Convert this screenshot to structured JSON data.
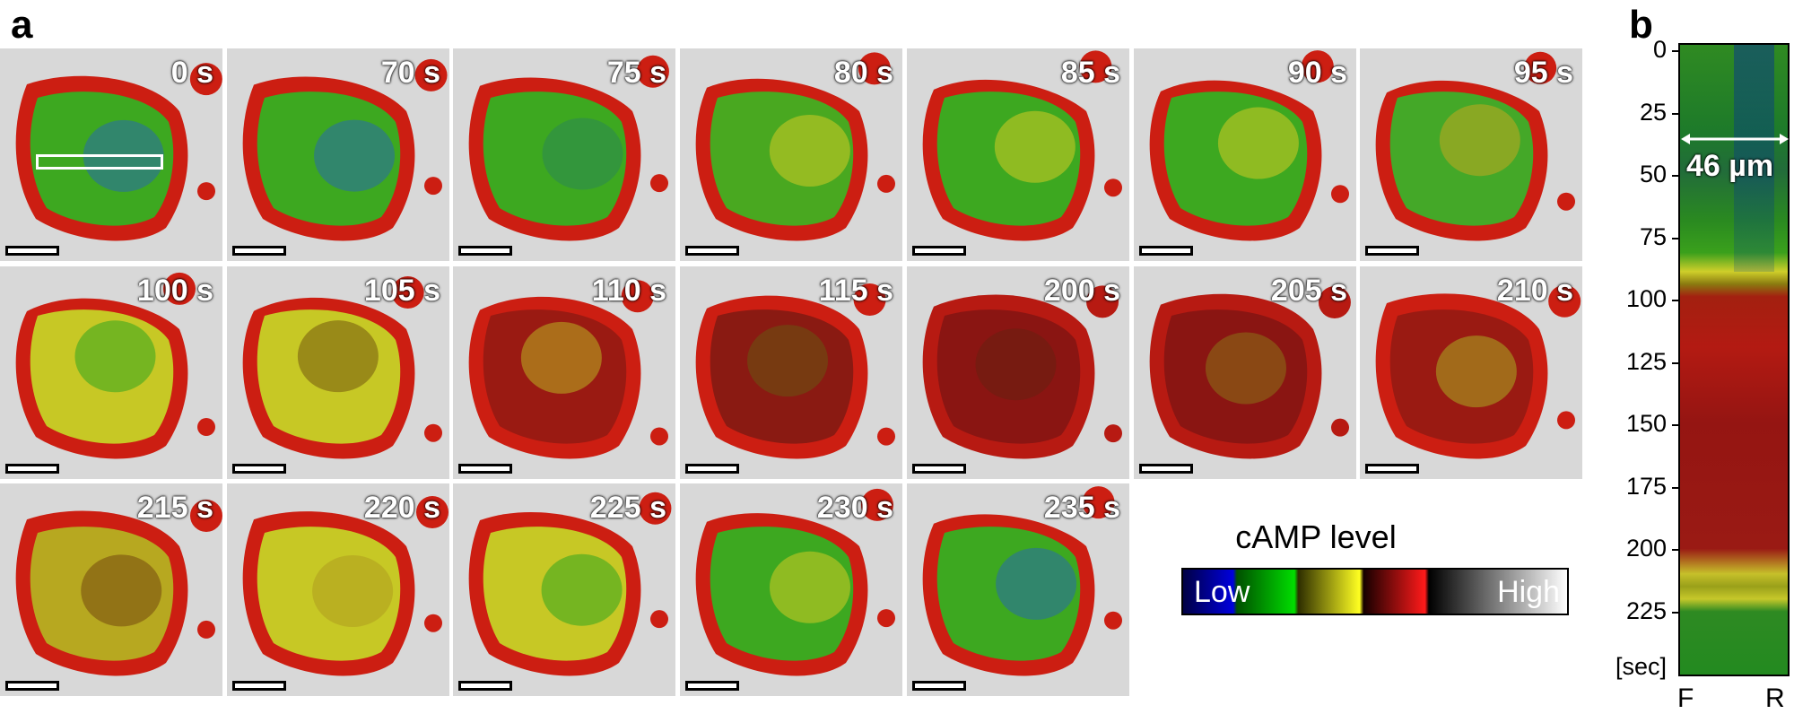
{
  "panel_a": {
    "letter": "a"
  },
  "panel_b": {
    "letter": "b"
  },
  "frames": [
    {
      "time": "0 s",
      "fill": "#3da820",
      "rim": "#cc1e12",
      "inner": "#2a6fa0"
    },
    {
      "time": "70 s",
      "fill": "#3da820",
      "rim": "#cc1e12",
      "inner": "#2a6fa0"
    },
    {
      "time": "75 s",
      "fill": "#3da820",
      "rim": "#cc1e12",
      "inner": "#2d8a50"
    },
    {
      "time": "80 s",
      "fill": "#49a820",
      "rim": "#cc1e12",
      "inner": "#c7c825"
    },
    {
      "time": "85 s",
      "fill": "#3da820",
      "rim": "#cc1e12",
      "inner": "#c7c825"
    },
    {
      "time": "90 s",
      "fill": "#3da820",
      "rim": "#cc1e12",
      "inner": "#c7c825"
    },
    {
      "time": "95 s",
      "fill": "#44a828",
      "rim": "#cc1e12",
      "inner": "#b7a820"
    },
    {
      "time": "100 s",
      "fill": "#c7c825",
      "rim": "#cc1e12",
      "inner": "#3da820"
    },
    {
      "time": "105 s",
      "fill": "#c7c825",
      "rim": "#cc1e12",
      "inner": "#7a6010"
    },
    {
      "time": "110 s",
      "fill": "#9a1a12",
      "rim": "#cc1e12",
      "inner": "#b8a520"
    },
    {
      "time": "115 s",
      "fill": "#8a1a12",
      "rim": "#cc1e12",
      "inner": "#6a5010"
    },
    {
      "time": "200 s",
      "fill": "#8a1512",
      "rim": "#b71a12",
      "inner": "#6a2010"
    },
    {
      "time": "205 s",
      "fill": "#8a1512",
      "rim": "#b71a12",
      "inner": "#8a6a15"
    },
    {
      "time": "210 s",
      "fill": "#9a1a12",
      "rim": "#cc1e12",
      "inner": "#a8a020"
    },
    {
      "time": "215 s",
      "fill": "#b7a820",
      "rim": "#cc1e12",
      "inner": "#7a5010"
    },
    {
      "time": "220 s",
      "fill": "#c7c825",
      "rim": "#cc1e12",
      "inner": "#b0a020"
    },
    {
      "time": "225 s",
      "fill": "#c7c825",
      "rim": "#cc1e12",
      "inner": "#3da820"
    },
    {
      "time": "230 s",
      "fill": "#3da820",
      "rim": "#cc1e12",
      "inner": "#c7c825"
    },
    {
      "time": "235 s",
      "fill": "#3da820",
      "rim": "#cc1e12",
      "inner": "#2a6fa0"
    }
  ],
  "colorbar": {
    "title": "cAMP level",
    "low_label": "Low",
    "high_label": "High"
  },
  "kymograph": {
    "width_label": "46 µm",
    "y_ticks": [
      "0",
      "25",
      "50",
      "75",
      "100",
      "125",
      "150",
      "175",
      "200",
      "225"
    ],
    "y_unit": "[sec]",
    "x_left": "F",
    "x_right": "R"
  }
}
